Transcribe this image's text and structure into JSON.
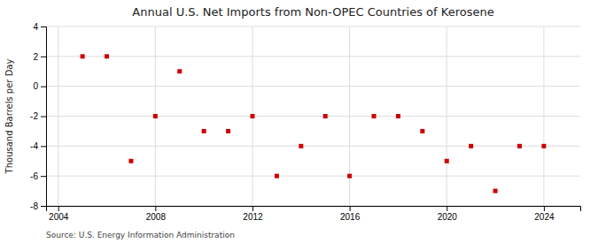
{
  "chart_data": {
    "type": "scatter",
    "title": "Annual U.S. Net Imports from Non-OPEC Countries of Kerosene",
    "ylabel": "Thousand Barrels per Day",
    "annotations": [
      "Source: U.S. Energy Information Administration"
    ],
    "x": [
      2005,
      2006,
      2007,
      2008,
      2009,
      2010,
      2011,
      2012,
      2013,
      2014,
      2015,
      2016,
      2017,
      2018,
      2019,
      2020,
      2021,
      2022,
      2023,
      2024
    ],
    "values": [
      2.0,
      2.0,
      -5.0,
      -2.0,
      1.0,
      -3.0,
      -3.0,
      -2.0,
      -6.0,
      -4.0,
      -2.0,
      -6.0,
      -2.0,
      -2.0,
      -3.0,
      -5.0,
      -4.0,
      -7.0,
      -4.0,
      -4.0
    ],
    "color": "#cc0000",
    "marker": "square",
    "xlim": [
      2003.5,
      2025.5
    ],
    "xticks": [
      2004,
      2008,
      2012,
      2016,
      2020,
      2024
    ],
    "ylim": [
      -8,
      4
    ],
    "yticks": [
      -8,
      -6,
      -4,
      -2,
      0,
      2,
      4
    ],
    "grid": true
  }
}
